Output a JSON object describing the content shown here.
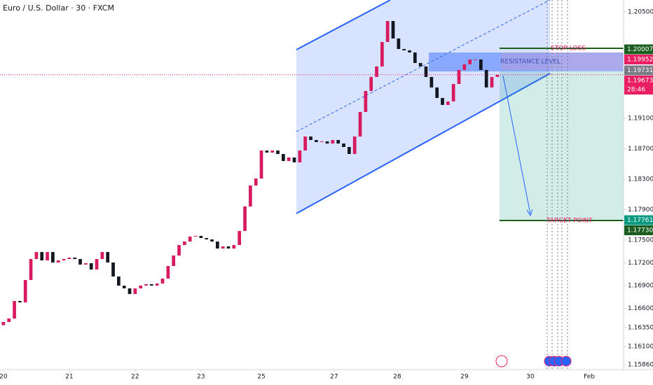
{
  "chart_data": {
    "type": "candlestick",
    "title": "Euro / U.S. Dollar · 30 · FXCM",
    "up_color": "#d81b60",
    "down_color": "#131722",
    "xlim": [
      -2.5,
      452
    ],
    "ylim": [
      1.15796,
      1.20656
    ],
    "xticks": [
      {
        "value": 0,
        "label": "20"
      },
      {
        "value": 48,
        "label": "21"
      },
      {
        "value": 96,
        "label": "22"
      },
      {
        "value": 144,
        "label": "23"
      },
      {
        "value": 188,
        "label": "25"
      },
      {
        "value": 241,
        "label": "27"
      },
      {
        "value": 287,
        "label": "28"
      },
      {
        "value": 336,
        "label": "29"
      },
      {
        "value": 384,
        "label": "30"
      },
      {
        "value": 427,
        "label": "Feb"
      }
    ],
    "yticks": [
      {
        "value": 1.205,
        "label": "1.20500"
      },
      {
        "value": 1.191,
        "label": "1.19100"
      },
      {
        "value": 1.187,
        "label": "1.18700"
      },
      {
        "value": 1.183,
        "label": "1.18300"
      },
      {
        "value": 1.179,
        "label": "1.17900"
      },
      {
        "value": 1.175,
        "label": "1.17500"
      },
      {
        "value": 1.172,
        "label": "1.17200"
      },
      {
        "value": 1.169,
        "label": "1.16900"
      },
      {
        "value": 1.166,
        "label": "1.16600"
      },
      {
        "value": 1.1635,
        "label": "1.16350"
      },
      {
        "value": 1.161,
        "label": "1.16100"
      },
      {
        "value": 1.1586,
        "label": "1.15860"
      }
    ],
    "x": [
      0,
      4,
      8,
      12,
      16,
      20,
      24,
      28,
      32,
      36,
      40,
      44,
      48,
      52,
      56,
      60,
      64,
      68,
      72,
      76,
      80,
      84,
      88,
      92,
      96,
      100,
      104,
      108,
      112,
      116,
      120,
      124,
      128,
      132,
      136,
      140,
      144,
      148,
      152,
      156,
      160,
      164,
      168,
      172,
      176,
      180,
      184,
      188,
      192,
      196,
      200,
      204,
      208,
      212,
      216,
      220,
      224,
      228,
      232,
      236,
      240,
      244,
      248,
      252,
      256,
      260,
      264,
      268,
      272,
      276,
      280,
      284,
      288,
      292,
      296,
      300,
      304,
      308,
      312,
      316,
      320,
      324,
      328,
      332,
      336,
      340,
      344,
      348,
      352,
      356,
      360
    ],
    "open": [
      1.1638,
      1.16422,
      1.16468,
      1.16698,
      1.1668,
      1.16974,
      1.1725,
      1.17342,
      1.17232,
      1.17342,
      1.17204,
      1.17232,
      1.1725,
      1.17269,
      1.1725,
      1.17177,
      1.17195,
      1.17112,
      1.1725,
      1.17342,
      1.17204,
      1.1702,
      1.169,
      1.16864,
      1.1679,
      1.16864,
      1.169,
      1.16919,
      1.169,
      1.16928,
      1.16993,
      1.17158,
      1.17296,
      1.17434,
      1.1748,
      1.17545,
      1.17554,
      1.17526,
      1.17508,
      1.1748,
      1.17388,
      1.17416,
      1.17388,
      1.17434,
      1.17619,
      1.17941,
      1.18217,
      1.18309,
      1.18677,
      1.1865,
      1.18677,
      1.18631,
      1.18539,
      1.18585,
      1.18521,
      1.18677,
      1.18861,
      1.18815,
      1.18788,
      1.18797,
      1.18769,
      1.18815,
      1.18769,
      1.18723,
      1.18631,
      1.18861,
      1.19184,
      1.1946,
      1.19644,
      1.19782,
      1.20104,
      1.2038,
      1.2015,
      1.20012,
      1.19994,
      1.19966,
      1.19828,
      1.19782,
      1.19644,
      1.19506,
      1.19368,
      1.19276,
      1.19322,
      1.19552,
      1.19736,
      1.1981,
      1.19874,
      1.19874,
      1.19736,
      1.19506,
      1.19644
    ],
    "close": [
      1.16422,
      1.16468,
      1.16698,
      1.1668,
      1.16974,
      1.1725,
      1.17342,
      1.17232,
      1.17342,
      1.17204,
      1.17232,
      1.1725,
      1.17269,
      1.1725,
      1.17177,
      1.17195,
      1.17112,
      1.1725,
      1.17342,
      1.17204,
      1.1702,
      1.169,
      1.16864,
      1.1679,
      1.16864,
      1.169,
      1.16919,
      1.169,
      1.16928,
      1.16993,
      1.17158,
      1.17296,
      1.17434,
      1.1748,
      1.17545,
      1.17554,
      1.17526,
      1.17508,
      1.1748,
      1.17388,
      1.17416,
      1.17388,
      1.17434,
      1.17619,
      1.17941,
      1.18217,
      1.18309,
      1.18677,
      1.1865,
      1.18677,
      1.18631,
      1.18539,
      1.18585,
      1.18521,
      1.18677,
      1.18861,
      1.18815,
      1.18788,
      1.18797,
      1.18769,
      1.18815,
      1.18769,
      1.18723,
      1.18631,
      1.18861,
      1.19184,
      1.1946,
      1.19644,
      1.19782,
      1.20104,
      1.2038,
      1.2015,
      1.20012,
      1.19994,
      1.19966,
      1.19828,
      1.19782,
      1.19644,
      1.19506,
      1.19368,
      1.19276,
      1.19322,
      1.19552,
      1.19736,
      1.1981,
      1.19874,
      1.19874,
      1.19736,
      1.19506,
      1.19644,
      1.19673
    ],
    "price_labels": [
      {
        "value": 1.20007,
        "label": "1.20007",
        "color": "#1b5e20"
      },
      {
        "value": 1.19952,
        "label": "1.19952",
        "color": "#e91e63"
      },
      {
        "value": 1.19731,
        "label": "1.19731",
        "color": "#787b86"
      },
      {
        "value": 1.19673,
        "label": "1.19673",
        "color": "#e91e63"
      },
      {
        "value": 1.17761,
        "label": "1.17761",
        "color": "#089981"
      },
      {
        "value": 1.1773,
        "label": "1.17730",
        "color": "#1b5e20"
      }
    ],
    "countdown": "28:46",
    "annotations": {
      "resistance": "RESISTANCE LEVEL",
      "stop_loss": "STOP LOSS",
      "target": "TARGET POINT"
    }
  }
}
